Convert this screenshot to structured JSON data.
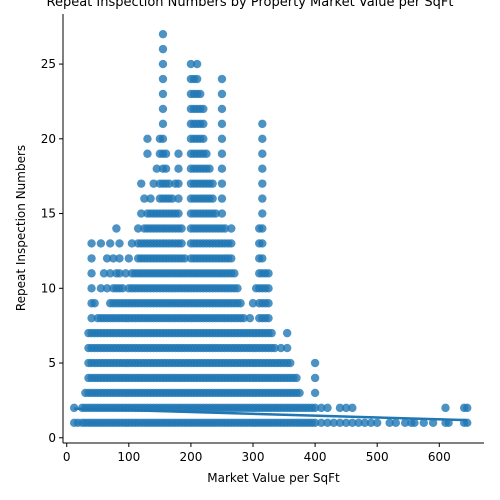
{
  "chart_data": {
    "type": "scatter",
    "title": "Repeat Inspection Numbers by Property Market Value per SqFt",
    "xlabel": "Market Value per SqFt",
    "ylabel": "Repeat Inspection Numbers",
    "xlim": [
      -6,
      672
    ],
    "ylim": [
      -0.35,
      28.35
    ],
    "xticks": [
      0,
      100,
      200,
      300,
      400,
      500,
      600
    ],
    "yticks": [
      0,
      5,
      10,
      15,
      20,
      25
    ],
    "grid": false,
    "legend": "none",
    "marker_color": "#1f77b4",
    "regression_line": {
      "x": [
        12,
        645
      ],
      "y": [
        1.95,
        1.18
      ]
    },
    "columns": [
      {
        "x": 12,
        "values": [
          1,
          2
        ]
      },
      {
        "x": 18,
        "values": [
          1
        ]
      },
      {
        "x": 25,
        "values": [
          1,
          2
        ]
      },
      {
        "x": 30,
        "values": [
          1,
          2,
          3
        ]
      },
      {
        "x": 35,
        "values": [
          1,
          2,
          3,
          4,
          5,
          6,
          7
        ]
      },
      {
        "x": 40,
        "values": [
          1,
          2,
          3,
          4,
          5,
          6,
          7,
          8,
          9,
          10,
          11,
          12,
          13
        ]
      },
      {
        "x": 45,
        "values": [
          1,
          2,
          3,
          4,
          5,
          6,
          7,
          9
        ]
      },
      {
        "x": 50,
        "values": [
          1,
          2,
          3,
          4,
          5,
          6,
          7,
          8
        ]
      },
      {
        "x": 55,
        "values": [
          1,
          2,
          3,
          4,
          5,
          6,
          7,
          8,
          10,
          13
        ]
      },
      {
        "x": 60,
        "values": [
          1,
          2,
          3,
          4,
          5,
          6,
          7,
          8,
          11
        ]
      },
      {
        "x": 65,
        "values": [
          1,
          2,
          3,
          4,
          5,
          6,
          7,
          8,
          10,
          12
        ]
      },
      {
        "x": 70,
        "values": [
          1,
          2,
          3,
          4,
          5,
          6,
          7,
          8,
          9,
          11,
          13
        ]
      },
      {
        "x": 75,
        "values": [
          1,
          2,
          3,
          4,
          5,
          6,
          7,
          8,
          9,
          10,
          12
        ]
      },
      {
        "x": 80,
        "values": [
          1,
          2,
          3,
          4,
          5,
          6,
          7,
          8,
          9,
          10,
          11,
          14
        ]
      },
      {
        "x": 85,
        "values": [
          1,
          2,
          3,
          4,
          5,
          6,
          7,
          8,
          9,
          10,
          11,
          12,
          13
        ]
      },
      {
        "x": 90,
        "values": [
          1,
          2,
          3,
          4,
          5,
          6,
          7,
          8,
          9,
          10
        ]
      },
      {
        "x": 95,
        "values": [
          1,
          2,
          3,
          4,
          5,
          6,
          7,
          8,
          9,
          11
        ]
      },
      {
        "x": 100,
        "values": [
          1,
          2,
          3,
          4,
          5,
          6,
          7,
          8,
          9,
          10,
          12
        ]
      },
      {
        "x": 105,
        "values": [
          1,
          2,
          3,
          4,
          5,
          6,
          7,
          8,
          9,
          10,
          11,
          13
        ]
      },
      {
        "x": 110,
        "values": [
          1,
          2,
          3,
          4,
          5,
          6,
          7,
          8,
          9,
          10,
          11
        ]
      },
      {
        "x": 115,
        "values": [
          1,
          2,
          3,
          4,
          5,
          6,
          7,
          8,
          9,
          10,
          11,
          12,
          13,
          14
        ]
      },
      {
        "x": 120,
        "values": [
          1,
          2,
          3,
          4,
          5,
          6,
          7,
          8,
          9,
          10,
          11,
          12,
          13,
          15,
          17
        ]
      },
      {
        "x": 125,
        "values": [
          1,
          2,
          3,
          4,
          5,
          6,
          7,
          8,
          9,
          10,
          11,
          12,
          13,
          14,
          16
        ]
      },
      {
        "x": 130,
        "values": [
          1,
          2,
          3,
          4,
          5,
          6,
          7,
          8,
          9,
          10,
          11,
          12,
          13,
          14,
          15,
          19,
          20
        ]
      },
      {
        "x": 135,
        "values": [
          1,
          2,
          3,
          4,
          5,
          6,
          7,
          8,
          9,
          10,
          11,
          12,
          13,
          14,
          15,
          16
        ]
      },
      {
        "x": 140,
        "values": [
          1,
          2,
          3,
          4,
          5,
          6,
          7,
          8,
          9,
          10,
          11,
          12,
          13,
          14,
          15,
          17
        ]
      },
      {
        "x": 145,
        "values": [
          1,
          2,
          3,
          4,
          5,
          6,
          7,
          8,
          9,
          10,
          11,
          12,
          13,
          14,
          15,
          18
        ]
      },
      {
        "x": 150,
        "values": [
          1,
          2,
          3,
          4,
          5,
          6,
          7,
          8,
          9,
          10,
          11,
          12,
          13,
          14,
          15,
          16,
          17,
          19,
          20
        ]
      },
      {
        "x": 155,
        "values": [
          1,
          2,
          3,
          4,
          5,
          6,
          7,
          8,
          9,
          10,
          11,
          12,
          13,
          14,
          15,
          16,
          17,
          18,
          19,
          20,
          21,
          22,
          23,
          24,
          25,
          26,
          27
        ]
      },
      {
        "x": 160,
        "values": [
          1,
          2,
          3,
          4,
          5,
          6,
          7,
          8,
          9,
          10,
          11,
          12,
          13,
          14,
          15,
          16,
          17,
          18,
          19
        ]
      },
      {
        "x": 165,
        "values": [
          1,
          2,
          3,
          4,
          5,
          6,
          7,
          8,
          9,
          10,
          11,
          12,
          13,
          14,
          15,
          16,
          17
        ]
      },
      {
        "x": 170,
        "values": [
          1,
          2,
          3,
          4,
          5,
          6,
          7,
          8,
          9,
          10,
          11,
          12,
          13,
          14,
          15,
          16
        ]
      },
      {
        "x": 175,
        "values": [
          1,
          2,
          3,
          4,
          5,
          6,
          7,
          8,
          9,
          10,
          11,
          12,
          13,
          14,
          15,
          17
        ]
      },
      {
        "x": 180,
        "values": [
          1,
          2,
          3,
          4,
          5,
          6,
          7,
          8,
          9,
          10,
          11,
          12,
          13,
          14,
          15,
          16,
          17,
          18,
          19
        ]
      },
      {
        "x": 185,
        "values": [
          1,
          2,
          3,
          4,
          5,
          6,
          7,
          8,
          9,
          10,
          11,
          12,
          13,
          14
        ]
      },
      {
        "x": 190,
        "values": [
          1,
          2,
          3,
          4,
          5,
          6,
          7,
          8,
          9,
          10,
          11,
          12
        ]
      },
      {
        "x": 195,
        "values": [
          1,
          2,
          3,
          4,
          5,
          6,
          7,
          8,
          9,
          10,
          11
        ]
      },
      {
        "x": 200,
        "values": [
          1,
          2,
          3,
          4,
          5,
          6,
          7,
          8,
          9,
          10,
          11,
          12,
          13,
          14,
          15,
          16,
          17,
          18,
          19,
          20,
          21,
          22,
          23,
          24,
          25
        ]
      },
      {
        "x": 205,
        "values": [
          1,
          2,
          3,
          4,
          5,
          6,
          7,
          8,
          9,
          10,
          11,
          12,
          13,
          14,
          15,
          16,
          17,
          18,
          19,
          20,
          21,
          22,
          23,
          24
        ]
      },
      {
        "x": 210,
        "values": [
          1,
          2,
          3,
          4,
          5,
          6,
          7,
          8,
          9,
          10,
          11,
          12,
          13,
          14,
          15,
          16,
          17,
          18,
          19,
          20,
          21,
          22,
          23,
          24,
          25
        ]
      },
      {
        "x": 215,
        "values": [
          1,
          2,
          3,
          4,
          5,
          6,
          7,
          8,
          9,
          10,
          11,
          12,
          13,
          14,
          15,
          16,
          17,
          18,
          19,
          20,
          21,
          22,
          23
        ]
      },
      {
        "x": 220,
        "values": [
          1,
          2,
          3,
          4,
          5,
          6,
          7,
          8,
          9,
          10,
          11,
          12,
          13,
          14,
          15,
          16,
          17,
          18,
          19,
          20,
          21,
          22
        ]
      },
      {
        "x": 225,
        "values": [
          1,
          2,
          3,
          4,
          5,
          6,
          7,
          8,
          9,
          10,
          11,
          12,
          13,
          14,
          15,
          16,
          17,
          18,
          19
        ]
      },
      {
        "x": 230,
        "values": [
          1,
          2,
          3,
          4,
          5,
          6,
          7,
          8,
          9,
          10,
          11,
          12,
          13,
          14,
          15,
          16,
          17,
          18
        ]
      },
      {
        "x": 235,
        "values": [
          1,
          2,
          3,
          4,
          5,
          6,
          7,
          8,
          9,
          10,
          11,
          12,
          13,
          14,
          15,
          16,
          17
        ]
      },
      {
        "x": 240,
        "values": [
          1,
          2,
          3,
          4,
          5,
          6,
          7,
          8,
          9,
          10,
          11,
          12,
          13,
          14,
          15
        ]
      },
      {
        "x": 245,
        "values": [
          1,
          2,
          3,
          4,
          5,
          6,
          7,
          8,
          9,
          10,
          11,
          12,
          13,
          14
        ]
      },
      {
        "x": 250,
        "values": [
          1,
          2,
          3,
          4,
          5,
          6,
          7,
          8,
          9,
          10,
          11,
          12,
          13,
          14,
          15,
          16,
          17,
          18,
          19,
          20,
          21,
          22,
          23,
          24
        ]
      },
      {
        "x": 255,
        "values": [
          1,
          2,
          3,
          4,
          5,
          6,
          7,
          8,
          9,
          10,
          11,
          12,
          13,
          14
        ]
      },
      {
        "x": 260,
        "values": [
          1,
          2,
          3,
          4,
          5,
          6,
          7,
          8,
          9,
          10,
          11,
          12,
          13
        ]
      },
      {
        "x": 265,
        "values": [
          1,
          2,
          3,
          4,
          5,
          6,
          7,
          8,
          9,
          10,
          11,
          12,
          13,
          14
        ]
      },
      {
        "x": 270,
        "values": [
          1,
          2,
          3,
          4,
          5,
          6,
          7,
          8,
          9,
          10,
          11
        ]
      },
      {
        "x": 275,
        "values": [
          1,
          2,
          3,
          4,
          5,
          6,
          7,
          8,
          9,
          10
        ]
      },
      {
        "x": 280,
        "values": [
          1,
          2,
          3,
          4,
          5,
          6,
          7,
          8,
          9
        ]
      },
      {
        "x": 285,
        "values": [
          1,
          2,
          3,
          4,
          5,
          6,
          7,
          8
        ]
      },
      {
        "x": 290,
        "values": [
          1,
          2,
          3,
          4,
          5,
          6,
          7
        ]
      },
      {
        "x": 295,
        "values": [
          1,
          2,
          3,
          4,
          5,
          6,
          7,
          8
        ]
      },
      {
        "x": 300,
        "values": [
          1,
          2,
          3,
          4,
          5,
          6,
          7,
          9
        ]
      },
      {
        "x": 305,
        "values": [
          1,
          2,
          3,
          4,
          5,
          6,
          7,
          10
        ]
      },
      {
        "x": 310,
        "values": [
          1,
          2,
          3,
          4,
          5,
          6,
          7,
          8,
          9,
          10,
          11,
          12,
          13,
          14
        ]
      },
      {
        "x": 315,
        "values": [
          1,
          2,
          3,
          4,
          5,
          6,
          7,
          8,
          9,
          10,
          11,
          12,
          13,
          14,
          15,
          16,
          17,
          18,
          19,
          20,
          21
        ]
      },
      {
        "x": 320,
        "values": [
          1,
          2,
          3,
          4,
          5,
          6,
          7,
          8,
          9,
          10,
          11
        ]
      },
      {
        "x": 325,
        "values": [
          1,
          2,
          3,
          4,
          5,
          6,
          7,
          8,
          9,
          10,
          11
        ]
      },
      {
        "x": 330,
        "values": [
          1,
          2,
          3,
          4,
          5,
          6,
          7
        ]
      },
      {
        "x": 335,
        "values": [
          1,
          2,
          3,
          4,
          5,
          6
        ]
      },
      {
        "x": 340,
        "values": [
          1,
          2,
          3,
          4,
          5
        ]
      },
      {
        "x": 345,
        "values": [
          1,
          2,
          3,
          4,
          5,
          6
        ]
      },
      {
        "x": 350,
        "values": [
          1,
          2,
          3,
          4,
          5
        ]
      },
      {
        "x": 355,
        "values": [
          1,
          2,
          3,
          4,
          5,
          6,
          7
        ]
      },
      {
        "x": 360,
        "values": [
          1,
          2,
          3,
          4,
          5
        ]
      },
      {
        "x": 365,
        "values": [
          1,
          2,
          3,
          4
        ]
      },
      {
        "x": 370,
        "values": [
          1,
          2,
          3,
          4
        ]
      },
      {
        "x": 375,
        "values": [
          1,
          2,
          3
        ]
      },
      {
        "x": 380,
        "values": [
          1,
          2
        ]
      },
      {
        "x": 385,
        "values": [
          1,
          2
        ]
      },
      {
        "x": 390,
        "values": [
          1,
          2
        ]
      },
      {
        "x": 395,
        "values": [
          1,
          2
        ]
      },
      {
        "x": 400,
        "values": [
          1,
          2,
          3,
          4,
          5
        ]
      },
      {
        "x": 410,
        "values": [
          1,
          2
        ]
      },
      {
        "x": 420,
        "values": [
          1,
          2
        ]
      },
      {
        "x": 430,
        "values": [
          1
        ]
      },
      {
        "x": 440,
        "values": [
          1,
          2
        ]
      },
      {
        "x": 450,
        "values": [
          1,
          2
        ]
      },
      {
        "x": 460,
        "values": [
          1,
          2
        ]
      },
      {
        "x": 470,
        "values": [
          1
        ]
      },
      {
        "x": 480,
        "values": [
          1
        ]
      },
      {
        "x": 490,
        "values": [
          1
        ]
      },
      {
        "x": 500,
        "values": [
          1
        ]
      },
      {
        "x": 520,
        "values": [
          1
        ]
      },
      {
        "x": 530,
        "values": [
          1
        ]
      },
      {
        "x": 545,
        "values": [
          1
        ]
      },
      {
        "x": 555,
        "values": [
          1
        ]
      },
      {
        "x": 560,
        "values": [
          1
        ]
      },
      {
        "x": 575,
        "values": [
          1
        ]
      },
      {
        "x": 590,
        "values": [
          1
        ]
      },
      {
        "x": 610,
        "values": [
          1,
          2
        ]
      },
      {
        "x": 615,
        "values": [
          1
        ]
      },
      {
        "x": 640,
        "values": [
          1,
          2
        ]
      },
      {
        "x": 645,
        "values": [
          1,
          2
        ]
      }
    ]
  }
}
